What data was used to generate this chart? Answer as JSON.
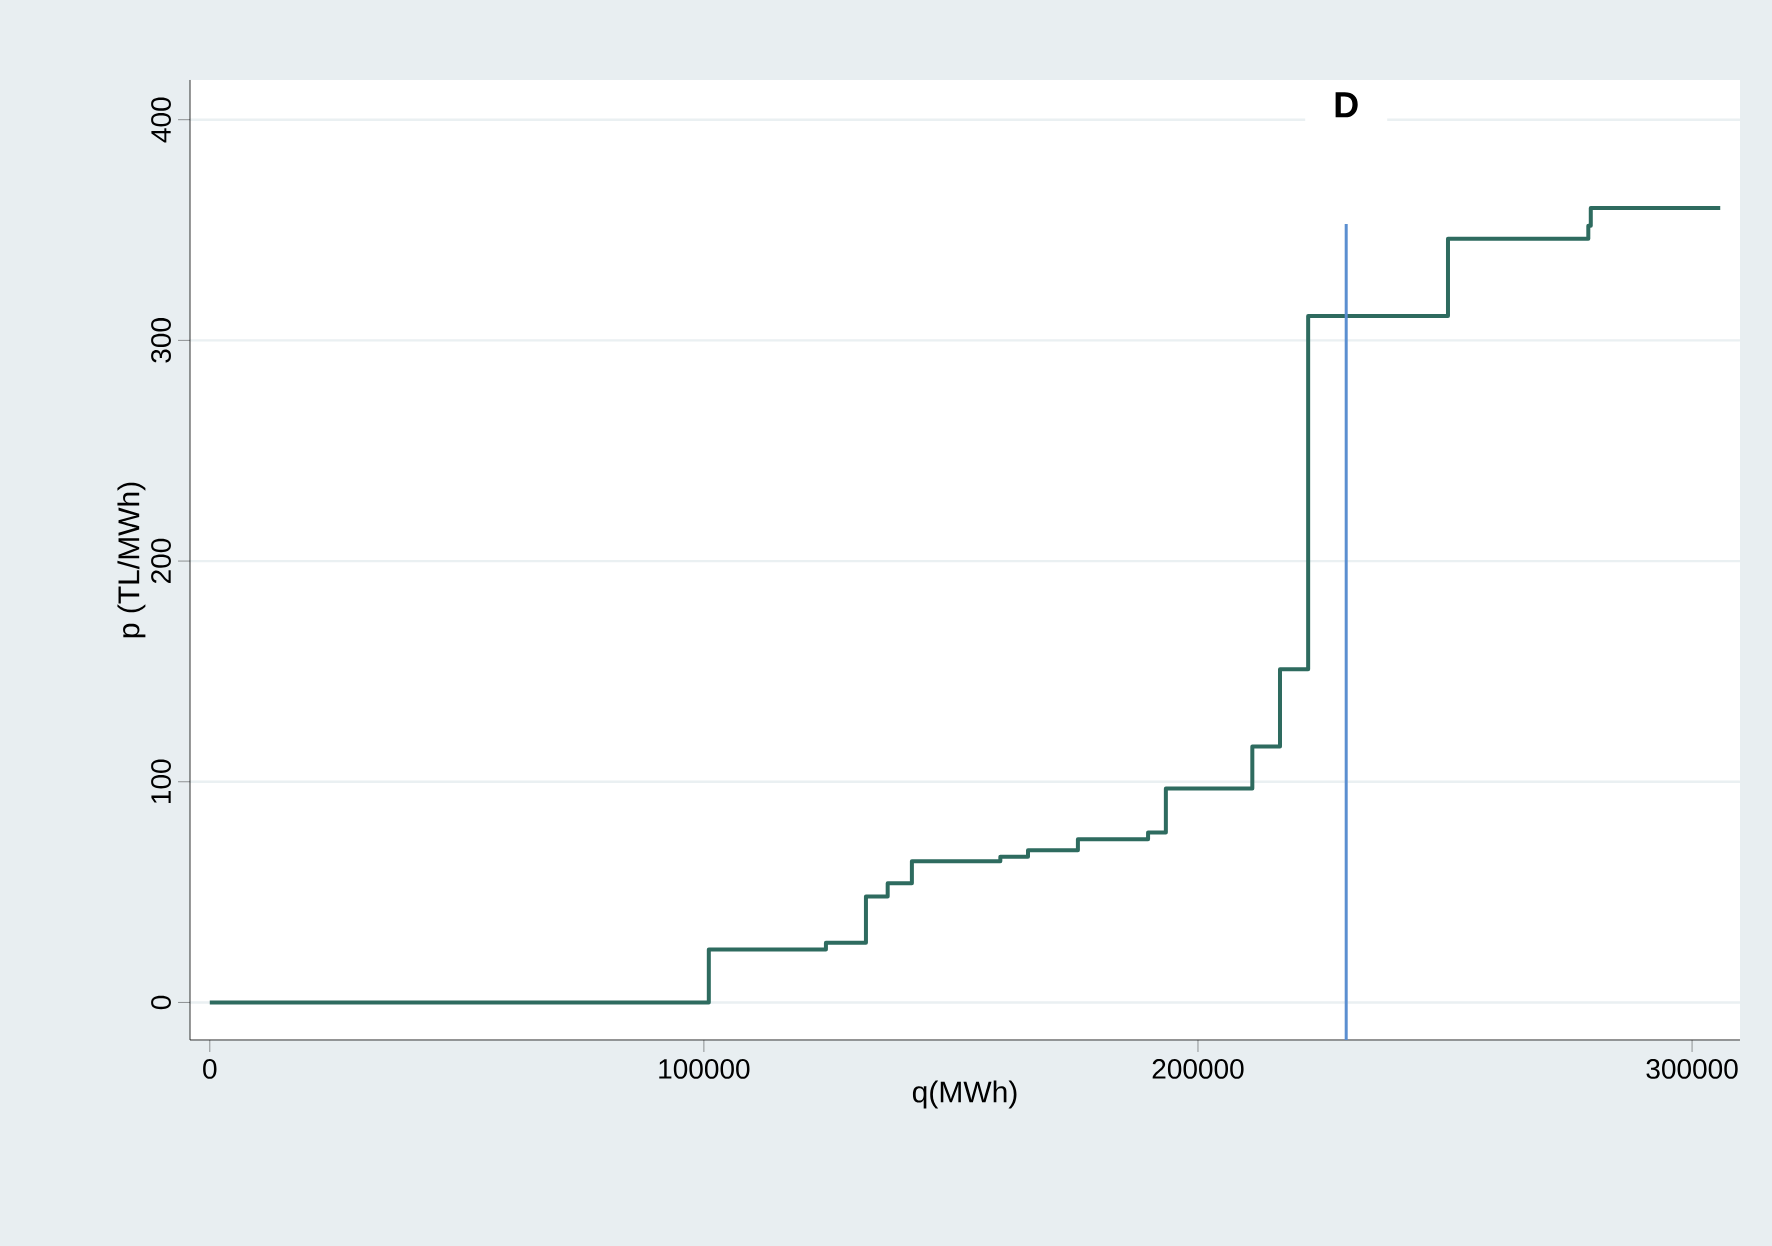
{
  "chart_data": {
    "type": "step",
    "xlabel": "q(MWh)",
    "ylabel": "p (TL/MWh)",
    "x": [
      0,
      101000,
      124700,
      132800,
      137200,
      142100,
      160000,
      165600,
      175700,
      189900,
      193500,
      211000,
      216600,
      222300,
      250600,
      279000,
      279500,
      305700
    ],
    "series": [
      {
        "color": "#2e6b5f",
        "values": [
          0,
          24,
          27,
          48,
          54,
          64,
          66,
          69,
          74,
          77,
          97,
          116,
          151,
          311,
          346,
          352,
          360,
          360
        ]
      }
    ],
    "xlim": [
      -4000,
      309700
    ],
    "ylim": [
      -17,
      418
    ],
    "xticks": [
      0,
      100000,
      200000,
      300000
    ],
    "yticks": [
      0,
      100,
      200,
      300,
      400
    ],
    "grid": "y",
    "ref_lines": [
      {
        "axis": "x",
        "value": 230000,
        "label": "D",
        "color": "#5b8fd0"
      }
    ]
  }
}
